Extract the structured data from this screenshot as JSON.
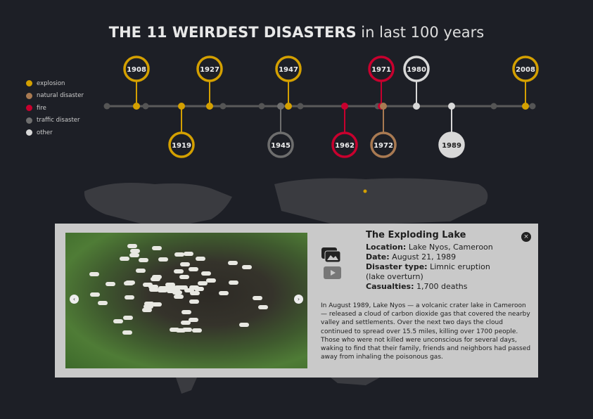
{
  "header": {
    "title_bold": "THE 11 WEIRDEST DISASTERS",
    "title_light": "in last 100 years"
  },
  "legend": [
    {
      "label": "explosion",
      "color": "#d4a000"
    },
    {
      "label": "natural disaster",
      "color": "#a97a52"
    },
    {
      "label": "fire",
      "color": "#c8002e"
    },
    {
      "label": "traffic disaster",
      "color": "#6e6e6e"
    },
    {
      "label": "other",
      "color": "#d8d8d8"
    }
  ],
  "events": [
    {
      "year": "1908",
      "type": "explosion",
      "side": "up"
    },
    {
      "year": "1919",
      "type": "explosion",
      "side": "down"
    },
    {
      "year": "1927",
      "type": "explosion",
      "side": "up"
    },
    {
      "year": "1945",
      "type": "traffic disaster",
      "side": "down"
    },
    {
      "year": "1947",
      "type": "explosion",
      "side": "up"
    },
    {
      "year": "1962",
      "type": "fire",
      "side": "down"
    },
    {
      "year": "1971",
      "type": "fire",
      "side": "up"
    },
    {
      "year": "1972",
      "type": "natural disaster",
      "side": "down"
    },
    {
      "year": "1980",
      "type": "other",
      "side": "up"
    },
    {
      "year": "1989",
      "type": "other",
      "side": "down",
      "selected": true
    },
    {
      "year": "2008",
      "type": "explosion",
      "side": "up"
    }
  ],
  "card": {
    "title": "The Exploding Lake",
    "location_label": "Location:",
    "location": "Lake Nyos, Cameroon",
    "date_label": "Date:",
    "date": "August 21, 1989",
    "type_label": "Disaster type:",
    "type": "Limnic eruption",
    "type2": "(lake overturn)",
    "casualties_label": "Casualties:",
    "casualties": "1,700 deaths",
    "description": "In August 1989, Lake Nyos — a volcanic crater lake in Cameroon — released a cloud of carbon dioxide gas that covered the nearby valley and settlements. Over the next two days the cloud continued to spread over 15.5 miles, killing over 1700 people. Those who were not killed were unconscious for several days, waking to find that their family, friends and neighbors had passed away from inhaling the poisonous gas.",
    "prev": "‹",
    "next": "›",
    "close": "×"
  }
}
